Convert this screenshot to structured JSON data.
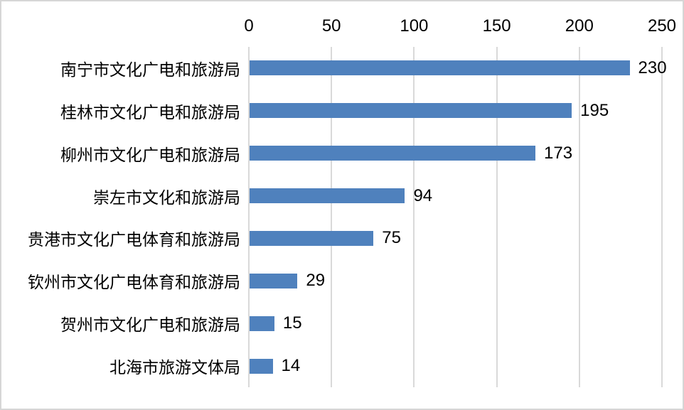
{
  "chart_data": {
    "type": "bar",
    "orientation": "horizontal",
    "title": "",
    "xlabel": "",
    "ylabel": "",
    "axis_position": "top",
    "grid": true,
    "legend": false,
    "xlim": [
      0,
      250
    ],
    "xticks": [
      "0",
      "50",
      "100",
      "150",
      "200",
      "250"
    ],
    "xtick_values": [
      0,
      50,
      100,
      150,
      200,
      250
    ],
    "categories": [
      "南宁市文化广电和旅游局",
      "桂林市文化广电和旅游局",
      "柳州市文化广电和旅游局",
      "崇左市文化和旅游局",
      "贵港市文化广电体育和旅游局",
      "钦州市文化广电体育和旅游局",
      "贺州市文化广电和旅游局",
      "北海市旅游文体局"
    ],
    "values": [
      230,
      195,
      173,
      94,
      75,
      29,
      15,
      14
    ],
    "value_labels": [
      "230",
      "195",
      "173",
      "94",
      "75",
      "29",
      "15",
      "14"
    ],
    "colors": {
      "bar": "#4f81bd",
      "gridline": "#d9d9d9",
      "text": "#000000",
      "frame_border": "#d6d6d6",
      "background": "#ffffff"
    }
  }
}
